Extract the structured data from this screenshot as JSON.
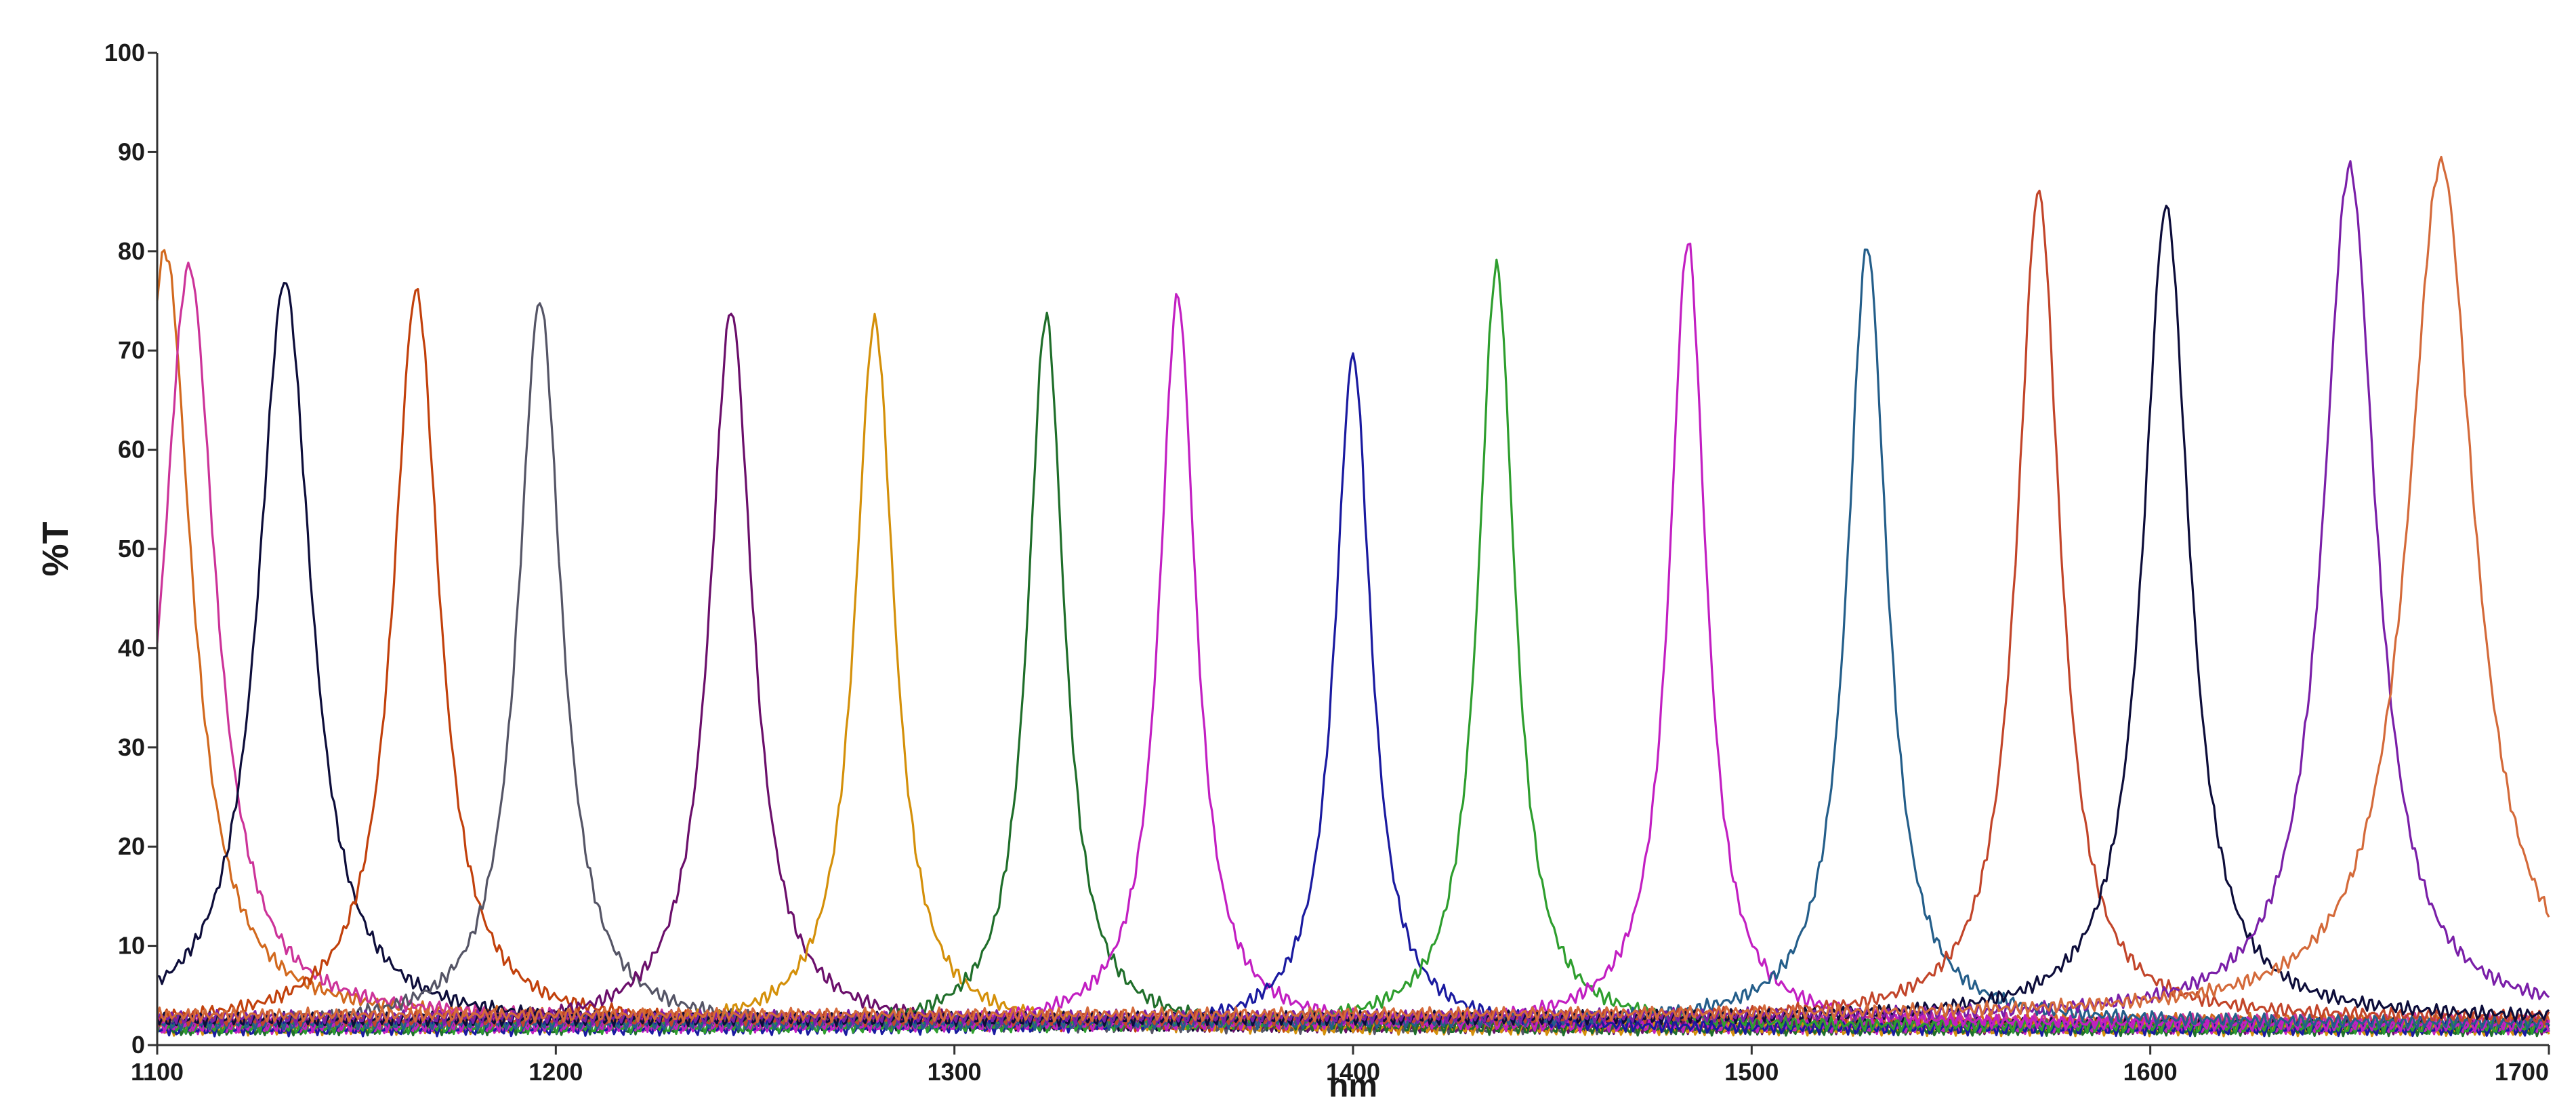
{
  "chart_data": {
    "type": "line",
    "ylabel": "%T",
    "xlabel": "nm",
    "xlim": [
      1100,
      1700
    ],
    "ylim": [
      0,
      100
    ],
    "x_ticks": [
      "1100",
      "1200",
      "1300",
      "1400",
      "1500",
      "1600",
      "1700"
    ],
    "y_ticks": [
      "0",
      "10",
      "20",
      "30",
      "40",
      "50",
      "60",
      "70",
      "80",
      "90",
      "100"
    ],
    "grid": false,
    "legend": "none",
    "series": [
      {
        "peak_nm": 1102,
        "peak_t": 80.0,
        "fwhm_nm": 16,
        "baseline_t": 2.5,
        "color": "#d2691e"
      },
      {
        "peak_nm": 1108,
        "peak_t": 78.5,
        "fwhm_nm": 16,
        "baseline_t": 2.5,
        "color": "#cc3399"
      },
      {
        "peak_nm": 1132,
        "peak_t": 77.0,
        "fwhm_nm": 16,
        "baseline_t": 2.0,
        "color": "#0d0d3a"
      },
      {
        "peak_nm": 1165,
        "peak_t": 76.0,
        "fwhm_nm": 14,
        "baseline_t": 2.0,
        "color": "#c2410c"
      },
      {
        "peak_nm": 1196,
        "peak_t": 75.0,
        "fwhm_nm": 13,
        "baseline_t": 1.8,
        "color": "#555566"
      },
      {
        "peak_nm": 1244,
        "peak_t": 74.0,
        "fwhm_nm": 13,
        "baseline_t": 1.8,
        "color": "#6b0f6b"
      },
      {
        "peak_nm": 1280,
        "peak_t": 73.0,
        "fwhm_nm": 12,
        "baseline_t": 1.6,
        "color": "#d4900a"
      },
      {
        "peak_nm": 1323,
        "peak_t": 73.5,
        "fwhm_nm": 11,
        "baseline_t": 1.6,
        "color": "#1f6e2a"
      },
      {
        "peak_nm": 1356,
        "peak_t": 75.5,
        "fwhm_nm": 11,
        "baseline_t": 1.8,
        "color": "#c21fc2"
      },
      {
        "peak_nm": 1400,
        "peak_t": 69.5,
        "fwhm_nm": 11,
        "baseline_t": 1.6,
        "color": "#1a1aa0"
      },
      {
        "peak_nm": 1436,
        "peak_t": 78.5,
        "fwhm_nm": 11,
        "baseline_t": 1.8,
        "color": "#2e9e2e"
      },
      {
        "peak_nm": 1484,
        "peak_t": 81.0,
        "fwhm_nm": 11,
        "baseline_t": 2.0,
        "color": "#c21fc2"
      },
      {
        "peak_nm": 1529,
        "peak_t": 80.5,
        "fwhm_nm": 12,
        "baseline_t": 2.2,
        "color": "#245e8a"
      },
      {
        "peak_nm": 1572,
        "peak_t": 86.0,
        "fwhm_nm": 13,
        "baseline_t": 2.6,
        "color": "#c2452a"
      },
      {
        "peak_nm": 1604,
        "peak_t": 84.5,
        "fwhm_nm": 14,
        "baseline_t": 2.6,
        "color": "#0d0d3a"
      },
      {
        "peak_nm": 1650,
        "peak_t": 88.5,
        "fwhm_nm": 16,
        "baseline_t": 2.8,
        "color": "#7a1fa8"
      },
      {
        "peak_nm": 1673,
        "peak_t": 89.0,
        "fwhm_nm": 20,
        "baseline_t": 3.0,
        "color": "#d46a3a"
      }
    ]
  }
}
